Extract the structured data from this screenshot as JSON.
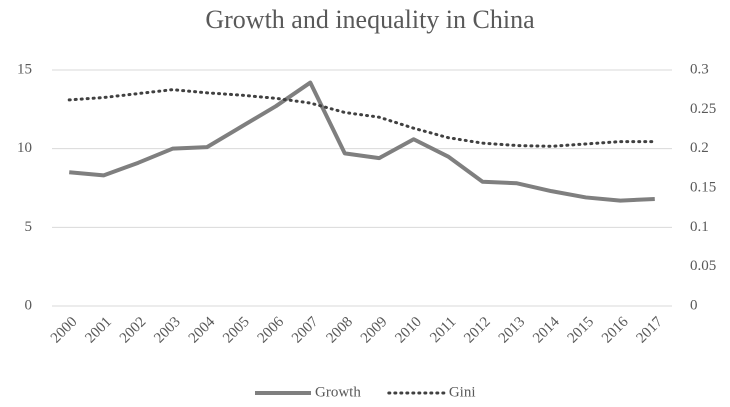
{
  "chart_data": {
    "type": "line",
    "title": "Growth and inequality in China",
    "categories": [
      "2000",
      "2001",
      "2002",
      "2003",
      "2004",
      "2005",
      "2006",
      "2007",
      "2008",
      "2009",
      "2010",
      "2011",
      "2012",
      "2013",
      "2014",
      "2015",
      "2016",
      "2017"
    ],
    "series": [
      {
        "name": "Growth",
        "color": "#7f7f7f",
        "style": "solid",
        "values": [
          8.5,
          8.3,
          9.1,
          10.0,
          10.1,
          11.4,
          12.7,
          14.2,
          9.7,
          9.4,
          10.6,
          9.5,
          7.9,
          7.8,
          7.3,
          6.9,
          6.7,
          6.8
        ]
      },
      {
        "name": "Gini",
        "color": "#404040",
        "style": "dotted",
        "axis": "y2",
        "values": [
          0.262,
          0.265,
          0.27,
          0.275,
          0.271,
          0.268,
          0.264,
          0.258,
          0.246,
          0.24,
          0.226,
          0.214,
          0.207,
          0.204,
          0.203,
          0.206,
          0.209,
          0.209
        ]
      }
    ],
    "ylim": [
      0,
      15
    ],
    "yticks": [
      0,
      5,
      10,
      15
    ],
    "y2lim": [
      0,
      0.3
    ],
    "y2ticks": [
      0,
      0.05,
      0.1,
      0.15,
      0.2,
      0.25,
      0.3
    ],
    "grid": true,
    "legend": "bottom"
  }
}
